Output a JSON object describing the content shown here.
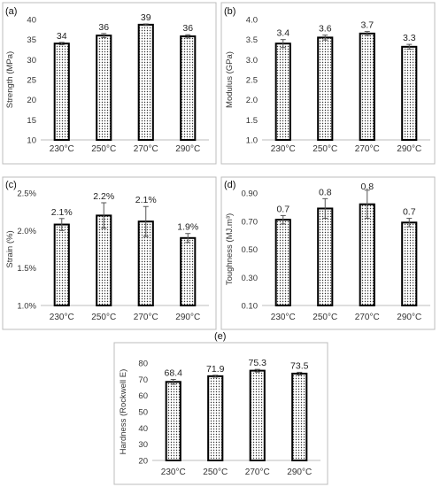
{
  "panels": [
    {
      "label": "(a)"
    },
    {
      "label": "(b)"
    },
    {
      "label": "(c)"
    },
    {
      "label": "(d)"
    },
    {
      "label": "(e)"
    }
  ],
  "chart_data": [
    {
      "type": "bar",
      "panel": "(a)",
      "categories": [
        "230°C",
        "250°C",
        "270°C",
        "290°C"
      ],
      "values": [
        34,
        36,
        38.7,
        35.8
      ],
      "errors": [
        0.3,
        0.5,
        0.2,
        0.4
      ],
      "data_labels": [
        "34",
        "36",
        "39",
        "36"
      ],
      "ylabel": "Strength (MPa)",
      "ylim": [
        10,
        40
      ],
      "yticks": [
        10,
        15,
        20,
        25,
        30,
        35,
        40
      ],
      "ytick_labels": [
        "10",
        "15",
        "20",
        "25",
        "30",
        "35",
        "40"
      ],
      "grid": false
    },
    {
      "type": "bar",
      "panel": "(b)",
      "categories": [
        "230°C",
        "250°C",
        "270°C",
        "290°C"
      ],
      "values": [
        3.4,
        3.55,
        3.65,
        3.32
      ],
      "errors": [
        0.1,
        0.06,
        0.05,
        0.06
      ],
      "data_labels": [
        "3.4",
        "3.6",
        "3.7",
        "3.3"
      ],
      "ylabel": "Modulus (GPa)",
      "ylim": [
        1.0,
        4.0
      ],
      "yticks": [
        1.0,
        1.5,
        2.0,
        2.5,
        3.0,
        3.5,
        4.0
      ],
      "ytick_labels": [
        "1.0",
        "1.5",
        "2.0",
        "2.5",
        "3.0",
        "3.5",
        "4.0"
      ],
      "grid": false
    },
    {
      "type": "bar",
      "panel": "(c)",
      "categories": [
        "230°C",
        "250°C",
        "270°C",
        "290°C"
      ],
      "values": [
        2.08,
        2.2,
        2.12,
        1.9
      ],
      "errors": [
        0.08,
        0.17,
        0.2,
        0.06
      ],
      "data_labels": [
        "2.1%",
        "2.2%",
        "2.1%",
        "1.9%"
      ],
      "ylabel": "Strain (%)",
      "ylim": [
        1.0,
        2.5
      ],
      "yticks": [
        1.0,
        1.5,
        2.0,
        2.5
      ],
      "ytick_labels": [
        "1.0%",
        "1.5%",
        "2.0%",
        "2.5%"
      ],
      "grid": false
    },
    {
      "type": "bar",
      "panel": "(d)",
      "categories": [
        "230°C",
        "250°C",
        "270°C",
        "290°C"
      ],
      "values": [
        0.71,
        0.79,
        0.82,
        0.69
      ],
      "errors": [
        0.03,
        0.07,
        0.1,
        0.03
      ],
      "data_labels": [
        "0.7",
        "0.8",
        "0.8",
        "0.7"
      ],
      "ylabel": "Toughness (MJ.m³)",
      "ylim": [
        0.1,
        0.9
      ],
      "yticks": [
        0.1,
        0.3,
        0.5,
        0.7,
        0.9
      ],
      "ytick_labels": [
        "0.10",
        "0.30",
        "0.50",
        "0.70",
        "0.90"
      ],
      "grid": false
    },
    {
      "type": "bar",
      "panel": "(e)",
      "categories": [
        "230°C",
        "250°C",
        "270°C",
        "290°C"
      ],
      "values": [
        68.4,
        71.9,
        75.3,
        73.5
      ],
      "errors": [
        1.5,
        0.6,
        0.8,
        0.8
      ],
      "data_labels": [
        "68.4",
        "71.9",
        "75.3",
        "73.5"
      ],
      "ylabel": "Hardness (Rockwell E)",
      "ylim": [
        20,
        80
      ],
      "yticks": [
        20,
        30,
        40,
        50,
        60,
        70,
        80
      ],
      "ytick_labels": [
        "20",
        "30",
        "40",
        "50",
        "60",
        "70",
        "80"
      ],
      "grid": false
    }
  ]
}
